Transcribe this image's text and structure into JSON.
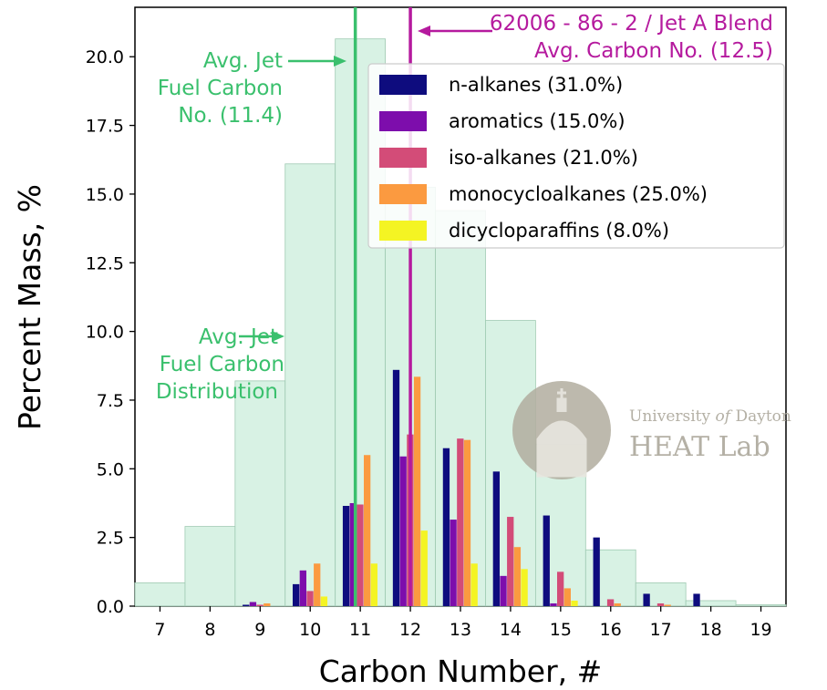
{
  "chart_data": {
    "type": "bar",
    "xlabel": "Carbon Number, #",
    "ylabel": "Percent Mass, %",
    "xlim": [
      6.5,
      19.5
    ],
    "ylim": [
      0,
      21.8
    ],
    "x_ticks": [
      "7",
      "8",
      "9",
      "10",
      "11",
      "12",
      "13",
      "14",
      "15",
      "16",
      "17",
      "18",
      "19"
    ],
    "y_ticks": [
      "0.0",
      "2.5",
      "5.0",
      "7.5",
      "10.0",
      "12.5",
      "15.0",
      "17.5",
      "20.0"
    ],
    "grid": false,
    "legend_placement": "top-right",
    "background_distribution": {
      "x": [
        7,
        8,
        9,
        10,
        11,
        12,
        13,
        14,
        15,
        16,
        17,
        18,
        19
      ],
      "values": [
        0.85,
        2.9,
        8.2,
        16.1,
        20.65,
        15.25,
        14.4,
        10.4,
        5.9,
        2.05,
        0.85,
        0.2,
        0.05
      ],
      "color": "#d4f1e1"
    },
    "series": [
      {
        "name": "n-alkanes (31.0%)",
        "color": "#0e0c7e",
        "values": [
          0,
          0,
          0.05,
          0.8,
          3.65,
          8.6,
          5.75,
          4.9,
          3.3,
          2.5,
          0.45,
          0.45,
          0
        ]
      },
      {
        "name": "aromatics (15.0%)",
        "color": "#7d0dac",
        "values": [
          0,
          0,
          0.15,
          1.3,
          3.75,
          5.45,
          3.15,
          1.1,
          0.1,
          0,
          0,
          0,
          0
        ]
      },
      {
        "name": "iso-alkanes (21.0%)",
        "color": "#d34c78",
        "values": [
          0,
          0,
          0.05,
          0.55,
          3.7,
          6.25,
          6.1,
          3.25,
          1.25,
          0.25,
          0.1,
          0,
          0
        ]
      },
      {
        "name": "monocycloalkanes (25.0%)",
        "color": "#fb9a40",
        "values": [
          0,
          0,
          0.1,
          1.55,
          5.5,
          8.35,
          6.05,
          2.15,
          0.65,
          0.1,
          0.05,
          0,
          0
        ]
      },
      {
        "name": "dicycloparaffins (8.0%)",
        "color": "#f4f423",
        "values": [
          0,
          0,
          0,
          0.35,
          1.55,
          2.75,
          1.55,
          1.35,
          0.2,
          0,
          0,
          0,
          0
        ]
      }
    ],
    "vlines": [
      {
        "x": 10.9,
        "color": "#3ac06d"
      },
      {
        "x": 12.0,
        "color": "#b51a9e"
      }
    ],
    "annotations": {
      "avg_carbon_no": [
        "Avg. Jet",
        "Fuel Carbon",
        "No. (11.4)"
      ],
      "avg_distribution": [
        "Avg. Jet",
        "Fuel Carbon",
        "Distribution"
      ],
      "blend": [
        "62006 - 86 - 2 / Jet A Blend",
        "Avg. Carbon No. (12.5)"
      ]
    },
    "watermark": {
      "line1_a": "University ",
      "line1_b": "of",
      "line1_c": " Dayton",
      "line2": "HEAT Lab"
    }
  }
}
